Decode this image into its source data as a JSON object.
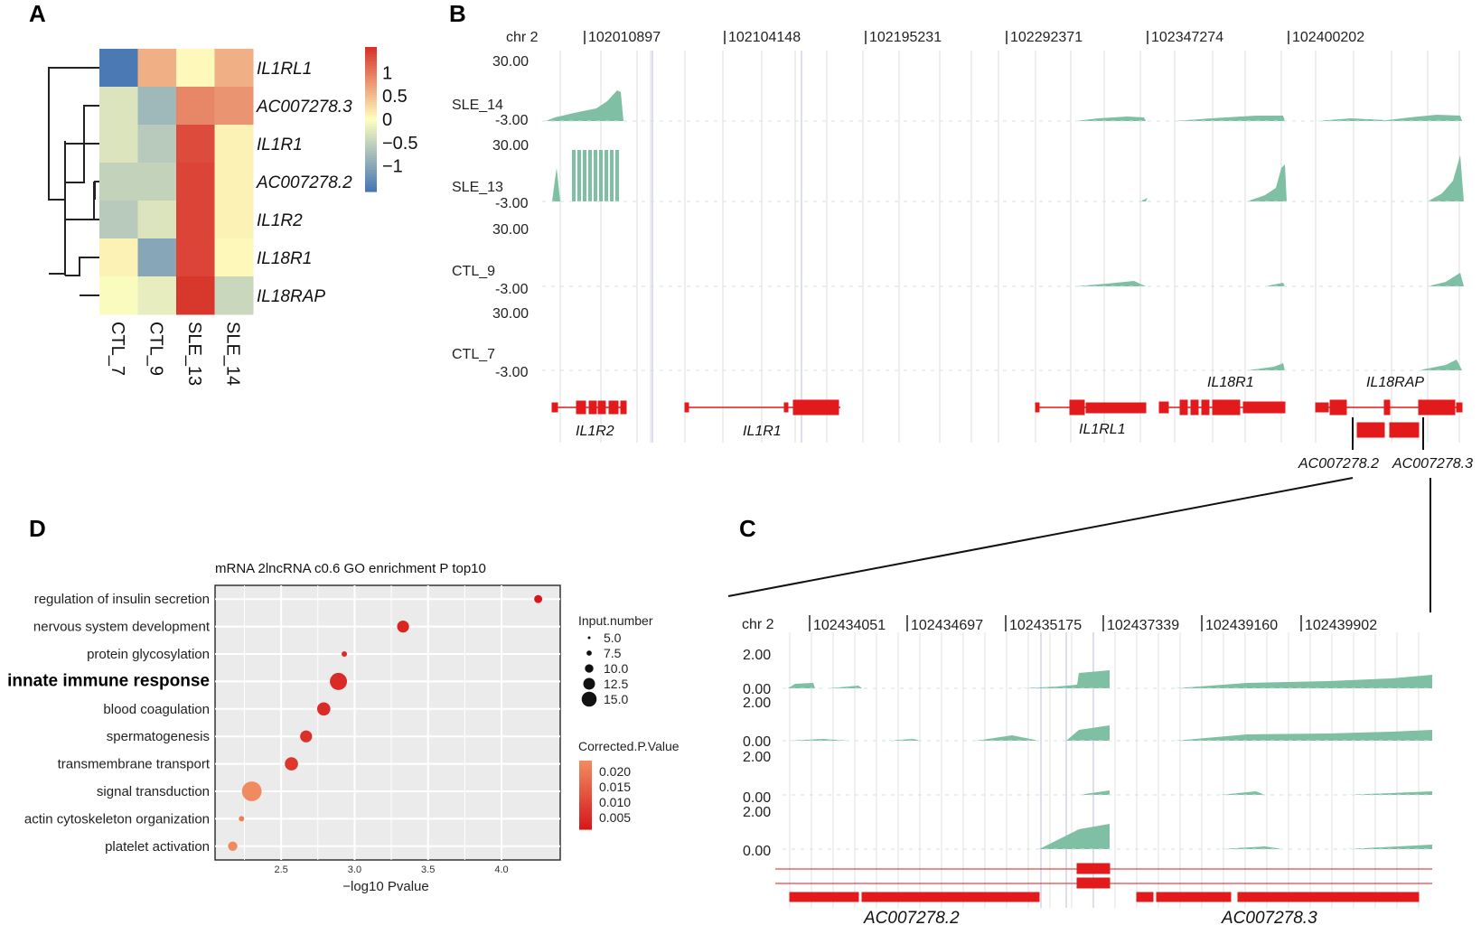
{
  "panels": {
    "a": {
      "label": "A",
      "rows": [
        "IL1RL1",
        "AC007278.3",
        "IL1R1",
        "AC007278.2",
        "IL1R2",
        "IL18R1",
        "IL18RAP"
      ],
      "cols": [
        "CTL_7",
        "CTL_9",
        "SLE_13",
        "SLE_14"
      ],
      "values": [
        [
          -1.5,
          0.6,
          0.05,
          0.6
        ],
        [
          -0.3,
          -0.8,
          0.9,
          0.8
        ],
        [
          -0.3,
          -0.6,
          1.35,
          0.1
        ],
        [
          -0.5,
          -0.5,
          1.4,
          0.1
        ],
        [
          -0.6,
          -0.3,
          1.4,
          0.1
        ],
        [
          0.1,
          -1.0,
          1.4,
          0.05
        ],
        [
          -0.05,
          -0.2,
          1.5,
          -0.45
        ]
      ],
      "colorbar": {
        "ticks": [
          "1",
          "0.5",
          "0",
          "−0.5",
          "−1"
        ],
        "tick_values": [
          1,
          0.5,
          0,
          -0.5,
          -1
        ],
        "range": [
          -1.55,
          1.55
        ],
        "low_color": "#4575b4",
        "mid_color": "#ffffbf",
        "high_color": "#d73027"
      }
    },
    "b": {
      "label": "B",
      "chr": "chr 2",
      "coords": [
        "102010897",
        "102104148",
        "102195231",
        "102292371",
        "102347274",
        "102400202"
      ],
      "track_max": "30.00",
      "track_min": "-3.00",
      "tracks": [
        "SLE_14",
        "SLE_13",
        "CTL_9",
        "CTL_7"
      ],
      "genes": [
        "IL1R2",
        "IL1R1",
        "IL1RL1",
        "IL18R1",
        "IL18RAP"
      ],
      "lnc": [
        "AC007278.2",
        "AC007278.3"
      ],
      "track_color": "#7fbfa4",
      "gene_color": "#e31a1c"
    },
    "c": {
      "label": "C",
      "chr": "chr 2",
      "coords": [
        "102434051",
        "102434697",
        "102435175",
        "102437339",
        "102439160",
        "102439902"
      ],
      "track_max": "2.00",
      "track_min": "0.00",
      "genes": [
        "AC007278.2",
        "AC007278.3"
      ]
    },
    "d": {
      "label": "D",
      "title": "mRNA 2lncRNA c0.6 GO enrichment P top10",
      "size_legend_title": "Input.number",
      "color_legend_title": "Corrected.P.Value",
      "size_legend": [
        "5.0",
        "7.5",
        "10.0",
        "12.5",
        "15.0"
      ],
      "size_legend_values": [
        5,
        7.5,
        10,
        12.5,
        15
      ],
      "color_legend": [
        "0.020",
        "0.015",
        "0.010",
        "0.005"
      ],
      "color_legend_values": [
        0.02,
        0.015,
        0.01,
        0.005
      ],
      "chart_data": {
        "type": "scatter",
        "title": "mRNA 2lncRNA c0.6 GO enrichment P top10",
        "xlabel": "−log10 Pvalue",
        "ylabel": "",
        "xlim": [
          2.05,
          4.4
        ],
        "xticks": [
          2.5,
          3.0,
          3.5,
          4.0
        ],
        "xtick_labels": [
          "2.5",
          "3.0",
          "3.5",
          "4.0"
        ],
        "terms": [
          "regulation of insulin secretion",
          "nervous system development",
          "protein glycosylation",
          "innate immune response",
          "blood coagulation",
          "spermatogenesis",
          "transmembrane transport",
          "signal transduction",
          "actin cytoskeleton organization",
          "platelet activation"
        ],
        "x": [
          4.25,
          3.33,
          2.93,
          2.89,
          2.79,
          2.67,
          2.57,
          2.3,
          2.23,
          2.17
        ],
        "input_number": [
          6,
          9,
          4,
          13,
          10,
          9,
          10,
          15,
          4,
          7
        ],
        "corrected_p": [
          0.003,
          0.005,
          0.006,
          0.006,
          0.006,
          0.007,
          0.008,
          0.022,
          0.02,
          0.022
        ],
        "highlight": "innate immune response"
      }
    }
  }
}
